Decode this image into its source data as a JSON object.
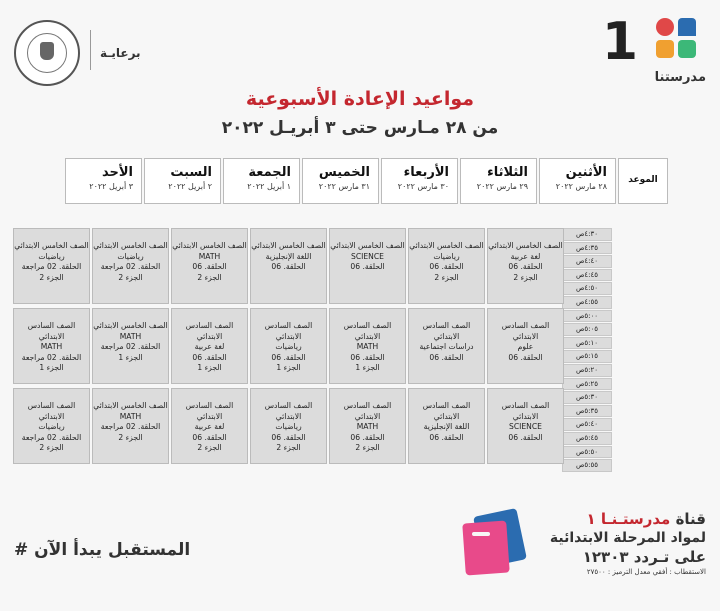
{
  "header": {
    "logo_text": "مدرستنا",
    "channel_number": "1",
    "sponsor_text": "برعايـة"
  },
  "title": "مواعيد الإعادة الأسبوعية",
  "subtitle": "من ٢٨ مـارس حتى ٣ أبريـل ٢٠٢٢",
  "table": {
    "time_header": "الموعد",
    "days": [
      {
        "name": "الأثنين",
        "date": "٢٨ مارس ٢٠٢٢"
      },
      {
        "name": "الثلاثاء",
        "date": "٢٩ مارس ٢٠٢٢"
      },
      {
        "name": "الأربعاء",
        "date": "٣٠ مارس ٢٠٢٢"
      },
      {
        "name": "الخميس",
        "date": "٣١ مارس ٢٠٢٢"
      },
      {
        "name": "الجمعة",
        "date": "١ أبريل ٢٠٢٢"
      },
      {
        "name": "السبت",
        "date": "٢ أبريل ٢٠٢٢"
      },
      {
        "name": "الأحد",
        "date": "٣ أبريل ٢٠٢٢"
      }
    ],
    "times": [
      "٤:٣٠ص",
      "٤:٣٥ص",
      "٤:٤٠ص",
      "٤:٤٥ص",
      "٤:٥٠ص",
      "٤:٥٥ص",
      "٥:٠٠ص",
      "٥:٠٥ص",
      "٥:١٠ص",
      "٥:١٥ص",
      "٥:٢٠ص",
      "٥:٢٥ص",
      "٥:٣٠ص",
      "٥:٣٥ص",
      "٥:٤٠ص",
      "٥:٤٥ص",
      "٥:٥٠ص",
      "٥:٥٥ص"
    ],
    "blocks": [
      [
        [
          "الصف الخامس الابتدائي",
          "لغة عربية",
          "الحلقة. 06",
          "الجزء 2"
        ],
        [
          "الصف الخامس الابتدائي",
          "رياضيات",
          "الحلقة. 06",
          "الجزء 2"
        ],
        [
          "الصف الخامس الابتدائي",
          "SCIENCE",
          "الحلقة. 06"
        ],
        [
          "الصف الخامس الابتدائي",
          "اللغة الإنجليزية",
          "الحلقة. 06"
        ],
        [
          "الصف الخامس الابتدائي",
          "MATH",
          "الحلقة. 06",
          "الجزء 2"
        ],
        [
          "الصف الخامس الابتدائي",
          "رياضيات",
          "الحلقة. 02 مراجعة",
          "الجزء 2"
        ],
        [
          "الصف الخامس الابتدائي",
          "رياضيات",
          "الحلقة. 02 مراجعة",
          "الجزء 2"
        ]
      ],
      [
        [
          "الصف السادس الابتدائي",
          "علوم",
          "الحلقة. 06"
        ],
        [
          "الصف السادس الابتدائي",
          "دراسات اجتماعية",
          "الحلقة. 06"
        ],
        [
          "الصف السادس الابتدائي",
          "MATH",
          "الحلقة. 06",
          "الجزء 1"
        ],
        [
          "الصف السادس الابتدائي",
          "رياضيات",
          "الحلقة. 06",
          "الجزء 1"
        ],
        [
          "الصف السادس الابتدائي",
          "لغة عربية",
          "الحلقة. 06",
          "الجزء 1"
        ],
        [
          "الصف الخامس الابتدائي",
          "MATH",
          "الحلقة. 02 مراجعة",
          "الجزء 1"
        ],
        [
          "الصف السادس الابتدائي",
          "MATH",
          "الحلقة. 02 مراجعة",
          "الجزء 1"
        ]
      ],
      [
        [
          "الصف السادس الابتدائي",
          "SCIENCE",
          "الحلقة. 06"
        ],
        [
          "الصف السادس الابتدائي",
          "اللغة الإنجليزية",
          "الحلقة. 06"
        ],
        [
          "الصف السادس الابتدائي",
          "MATH",
          "الحلقة. 06",
          "الجزء 2"
        ],
        [
          "الصف السادس الابتدائي",
          "رياضيات",
          "الحلقة. 06",
          "الجزء 2"
        ],
        [
          "الصف السادس الابتدائي",
          "لغة عربية",
          "الحلقة. 06",
          "الجزء 2"
        ],
        [
          "الصف الخامس الابتدائي",
          "MATH",
          "الحلقة. 02 مراجعة",
          "الجزء 2"
        ],
        [
          "الصف السادس الابتدائي",
          "رياضيات",
          "الحلقة. 02 مراجعة",
          "الجزء 2"
        ]
      ]
    ]
  },
  "footer": {
    "slogan": "# المستقبل يبدأ الآن",
    "channel_prefix": "قناة",
    "channel_brand": "مدرستـنـا ١",
    "line2": "لمواد المرحلة الابتدائية",
    "line3": "على تـردد ١٢٣٠٣",
    "line4": "الاستقطاب : أفقي معدل الترميز : ٢٧٥٠٠"
  },
  "colors": {
    "accent": "#c4272f",
    "logo_blue": "#2b6cb0",
    "logo_orange": "#f0a030",
    "logo_red": "#e04848",
    "logo_green": "#3cb878",
    "cell_bg": "#dcdcdc"
  }
}
